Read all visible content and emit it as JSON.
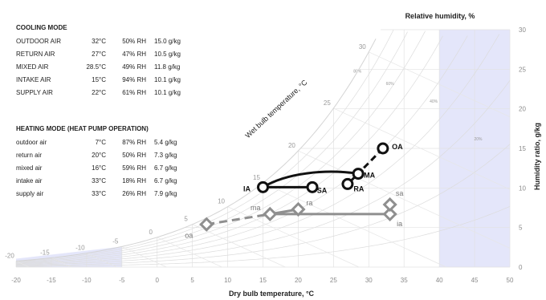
{
  "cooling_table": {
    "title": "COOLING MODE",
    "rows": [
      {
        "name": "OUTDOOR AIR",
        "temp": "32°C",
        "rh": "50% RH",
        "hr": "15.0 g/kg"
      },
      {
        "name": "RETURN AIR",
        "temp": "27°C",
        "rh": "47% RH",
        "hr": "10.5 g/kg"
      },
      {
        "name": "MIXED AIR",
        "temp": "28.5°C",
        "rh": "49% RH",
        "hr": "11.8 g/kg"
      },
      {
        "name": "INTAKE AIR",
        "temp": "15°C",
        "rh": "94% RH",
        "hr": "10.1 g/kg"
      },
      {
        "name": "SUPPLY AIR",
        "temp": "22°C",
        "rh": "61% RH",
        "hr": "10.1 g/kg"
      }
    ]
  },
  "heating_table": {
    "title": "HEATING MODE (HEAT PUMP OPERATION)",
    "rows": [
      {
        "name": "outdoor air",
        "temp": "7°C",
        "rh": "87% RH",
        "hr": "5.4 g/kg"
      },
      {
        "name": "return air",
        "temp": "20°C",
        "rh": "50% RH",
        "hr": "7.3 g/kg"
      },
      {
        "name": "mixed air",
        "temp": "16°C",
        "rh": "59% RH",
        "hr": "6.7 g/kg"
      },
      {
        "name": "intake air",
        "temp": "33°C",
        "rh": "18% RH",
        "hr": "6.7 g/kg"
      },
      {
        "name": "supply air",
        "temp": "33°C",
        "rh": "26% RH",
        "hr": "7.9 g/kg"
      }
    ]
  },
  "chart_data": {
    "type": "scatter",
    "chart_kind": "psychrometric",
    "xlabel": "Dry bulb temperature, °C",
    "ylabel": "Humidity ratio, g/kg",
    "rh_axis_label": "Relative humidity, %",
    "wb_axis_label": "Wet bulb temperature, °C",
    "xlim": [
      -20,
      50
    ],
    "ylim": [
      0,
      30
    ],
    "x_ticks": [
      "-20",
      "-15",
      "-10",
      "-5",
      "0",
      "5",
      "10",
      "15",
      "20",
      "25",
      "30",
      "35",
      "40",
      "45",
      "50"
    ],
    "y_ticks": [
      "0",
      "5",
      "10",
      "15",
      "20",
      "25",
      "30"
    ],
    "wet_bulb_labels": [
      "-20",
      "-15",
      "-10",
      "-5",
      "0",
      "5",
      "10",
      "15",
      "20",
      "25",
      "30"
    ],
    "rh_labels": [
      "80%",
      "60%",
      "40%",
      "20%"
    ],
    "shaded_region_x_min": 40,
    "series": [
      {
        "mode": "cooling",
        "color": "#111111",
        "marker": "circle",
        "points": [
          {
            "label": "OA",
            "x": 32,
            "y": 15.0
          },
          {
            "label": "RA",
            "x": 27,
            "y": 10.5
          },
          {
            "label": "MA",
            "x": 28.5,
            "y": 11.8
          },
          {
            "label": "IA",
            "x": 15,
            "y": 10.1
          },
          {
            "label": "SA",
            "x": 22,
            "y": 10.1
          }
        ]
      },
      {
        "mode": "heating",
        "color": "#8f8f8f",
        "marker": "diamond",
        "points": [
          {
            "label": "oa",
            "x": 7,
            "y": 5.4
          },
          {
            "label": "ra",
            "x": 20,
            "y": 7.3
          },
          {
            "label": "ma",
            "x": 16,
            "y": 6.7
          },
          {
            "label": "ia",
            "x": 33,
            "y": 6.7
          },
          {
            "label": "sa",
            "x": 33,
            "y": 7.9
          }
        ]
      }
    ]
  }
}
